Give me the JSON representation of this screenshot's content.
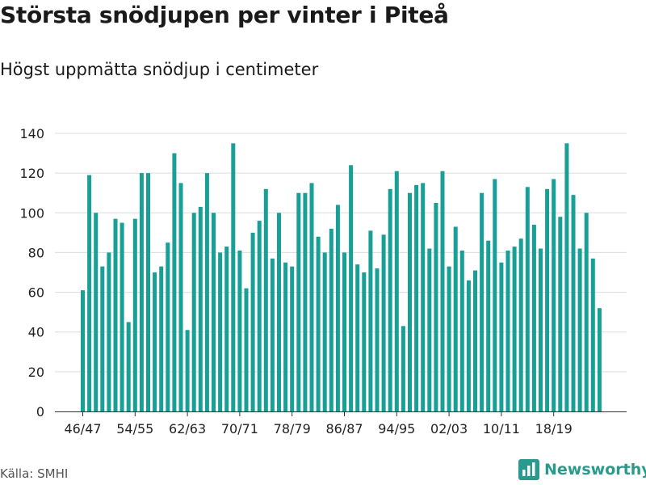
{
  "title": "Största snödjupen per vinter i Piteå",
  "subtitle": "Högst uppmätta snödjup i centimeter",
  "source": "Källa: SMHI",
  "brand": "Newsworthy",
  "colors": {
    "bar": "#18a097",
    "grid": "#dcdcdc",
    "axis": "#333333",
    "brand": "#2a9a8c"
  },
  "chart_data": {
    "type": "bar",
    "title": "Största snödjupen per vinter i Piteå",
    "subtitle": "Högst uppmätta snödjup i centimeter",
    "xlabel": "",
    "ylabel": "",
    "ylim": [
      0,
      140
    ],
    "yticks": [
      0,
      20,
      40,
      60,
      80,
      100,
      120,
      140
    ],
    "grid": true,
    "categories": [
      "46/47",
      "47/48",
      "48/49",
      "49/50",
      "50/51",
      "51/52",
      "52/53",
      "53/54",
      "54/55",
      "55/56",
      "56/57",
      "57/58",
      "58/59",
      "59/60",
      "60/61",
      "61/62",
      "62/63",
      "63/64",
      "64/65",
      "65/66",
      "66/67",
      "67/68",
      "68/69",
      "69/70",
      "70/71",
      "71/72",
      "72/73",
      "73/74",
      "74/75",
      "75/76",
      "76/77",
      "77/78",
      "78/79",
      "79/80",
      "80/81",
      "81/82",
      "82/83",
      "83/84",
      "84/85",
      "85/86",
      "86/87",
      "87/88",
      "88/89",
      "89/90",
      "90/91",
      "91/92",
      "92/93",
      "93/94",
      "94/95",
      "95/96",
      "96/97",
      "97/98",
      "98/99",
      "99/00",
      "00/01",
      "01/02",
      "02/03",
      "03/04",
      "04/05",
      "05/06",
      "06/07",
      "07/08",
      "08/09",
      "09/10",
      "10/11",
      "11/12",
      "12/13",
      "13/14",
      "14/15",
      "15/16",
      "16/17",
      "17/18",
      "18/19",
      "19/20",
      "20/21",
      "21/22",
      "22/23",
      "23/24",
      "24/25",
      "25/26"
    ],
    "tick_labels": [
      "46/47",
      "54/55",
      "62/63",
      "70/71",
      "78/79",
      "86/87",
      "94/95",
      "02/03",
      "10/11",
      "18/19"
    ],
    "values": [
      61,
      119,
      100,
      73,
      80,
      97,
      95,
      45,
      97,
      120,
      120,
      70,
      73,
      85,
      130,
      115,
      41,
      100,
      103,
      120,
      100,
      80,
      83,
      135,
      81,
      62,
      90,
      96,
      112,
      77,
      100,
      75,
      73,
      110,
      110,
      115,
      88,
      80,
      92,
      104,
      80,
      124,
      74,
      70,
      91,
      72,
      89,
      112,
      121,
      43,
      110,
      114,
      115,
      82,
      105,
      121,
      73,
      93,
      81,
      66,
      71,
      110,
      86,
      117,
      75,
      81,
      83,
      87,
      113,
      94,
      82,
      112,
      117,
      98,
      135,
      109,
      82,
      100,
      77,
      52
    ]
  }
}
